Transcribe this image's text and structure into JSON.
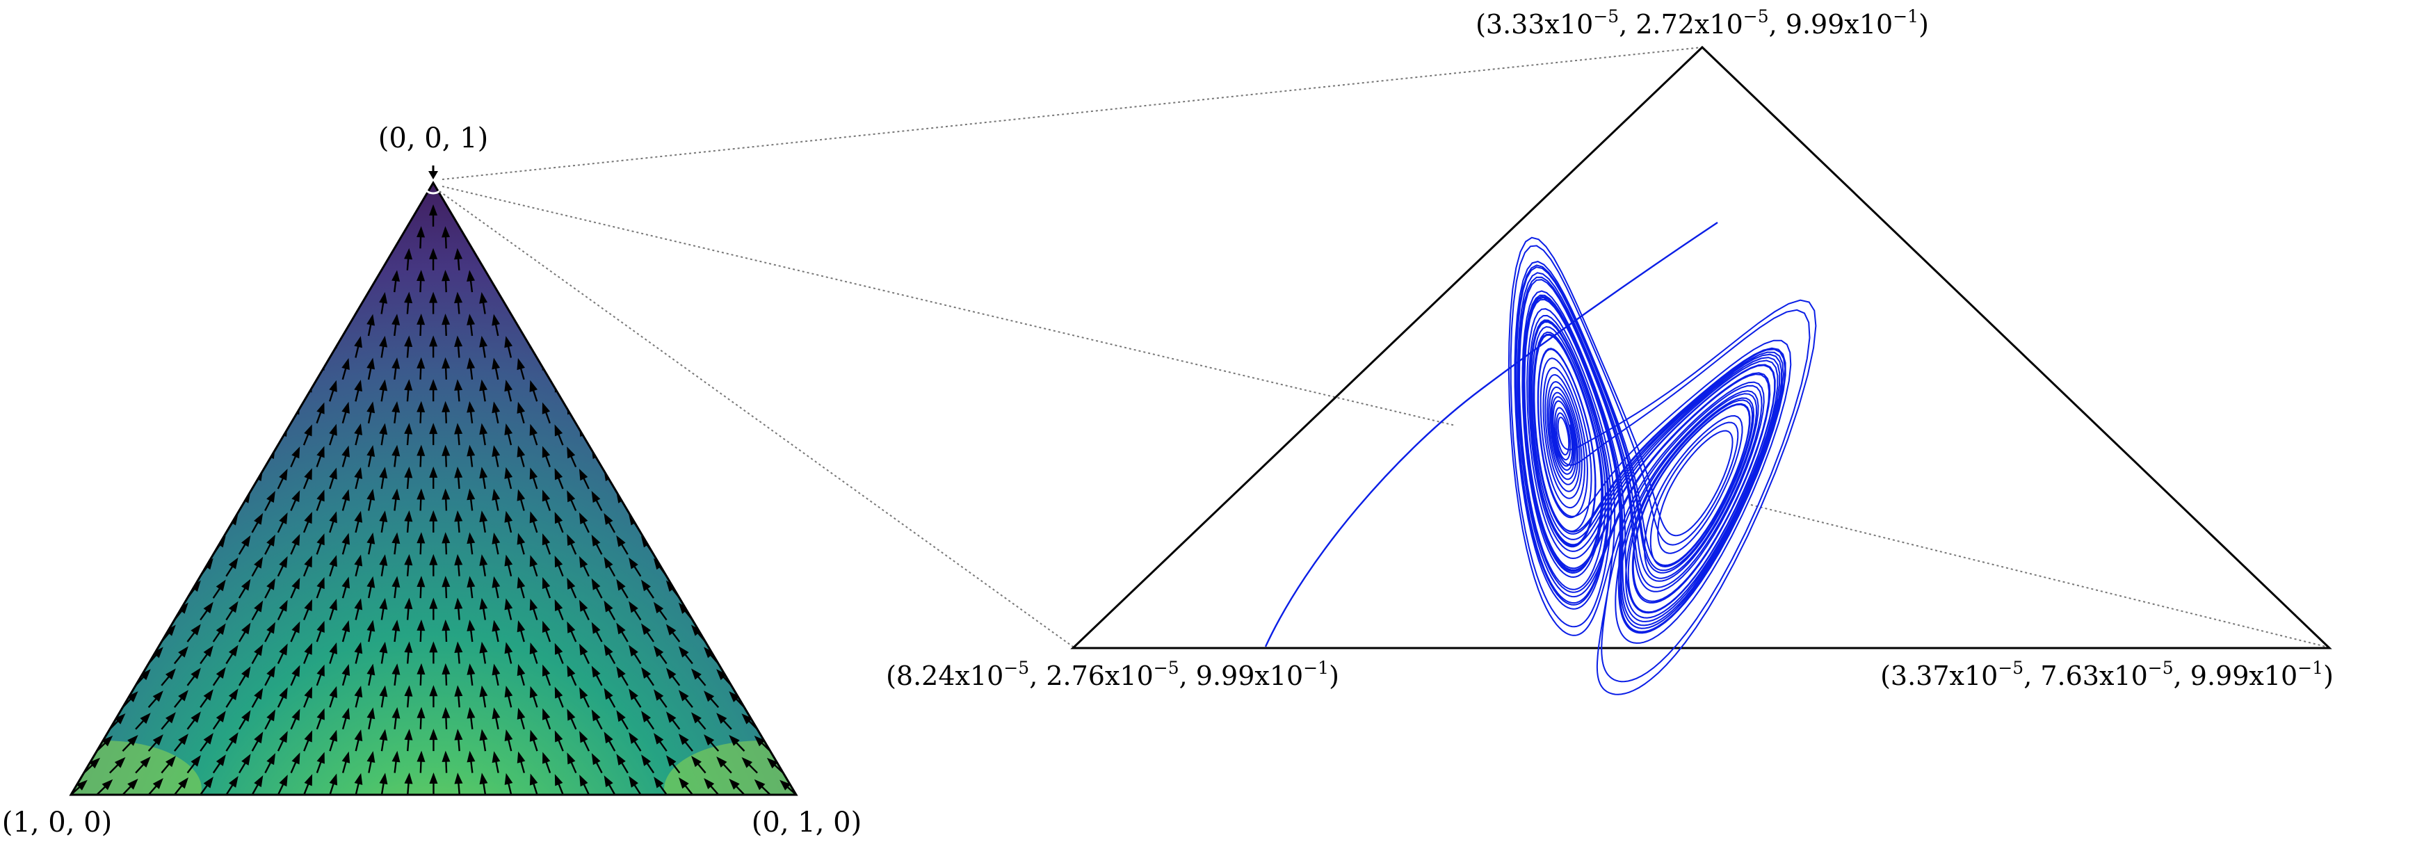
{
  "simplex": {
    "vertices": {
      "left": "(1, 0, 0)",
      "right": "(0, 1, 0)",
      "top": "(0, 0, 1)"
    },
    "colormap": [
      "#3f1a5a",
      "#453781",
      "#3b5a8c",
      "#2f7e8c",
      "#26a383",
      "#4ac16d",
      "#8fd84c"
    ],
    "arrow_color": "#000000"
  },
  "zoom": {
    "vertices": {
      "top": {
        "a": "3.33",
        "b": "2.72",
        "c": "9.99",
        "ea": "−5",
        "eb": "−5",
        "ec": "−1"
      },
      "left": {
        "a": "8.24",
        "b": "2.76",
        "c": "9.99",
        "ea": "−5",
        "eb": "−5",
        "ec": "−1"
      },
      "right": {
        "a": "3.37",
        "b": "7.63",
        "c": "9.99",
        "ea": "−5",
        "eb": "−5",
        "ec": "−1"
      }
    },
    "trajectory_color": "#0a1ee6",
    "connector_color": "#777777"
  }
}
